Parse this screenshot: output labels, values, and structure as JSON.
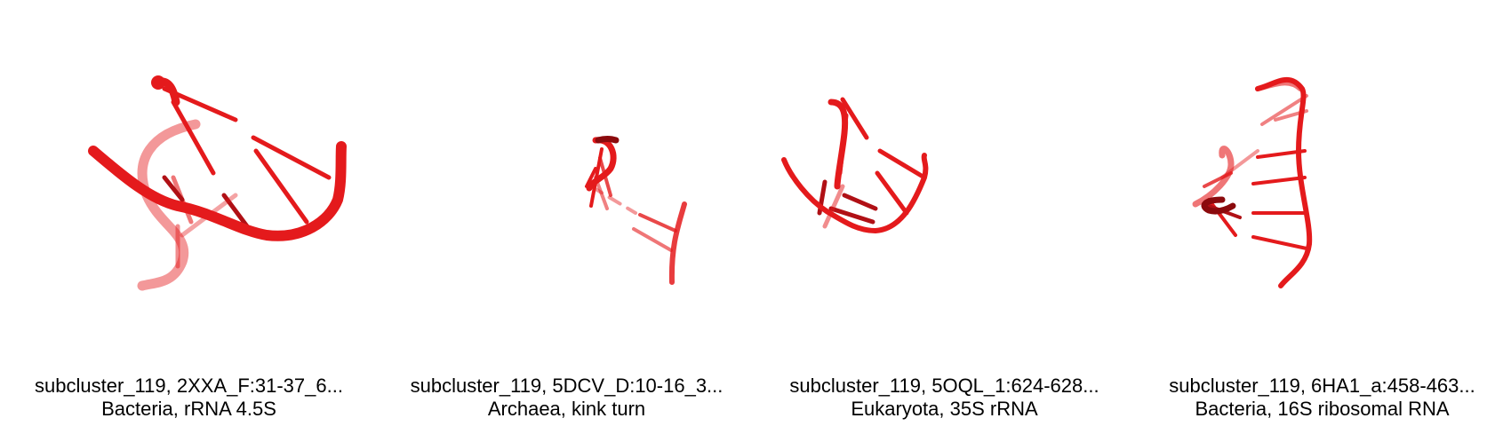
{
  "structure_color": "#e41a1c",
  "panels": [
    {
      "title": "subcluster_119, 2XXA_F:31-37_6...",
      "subtitle": "Bacteria, rRNA 4.5S",
      "image": "rna-structure-icon"
    },
    {
      "title": "subcluster_119, 5DCV_D:10-16_3...",
      "subtitle": "Archaea, kink turn",
      "image": "rna-structure-icon"
    },
    {
      "title": "subcluster_119, 5OQL_1:624-628...",
      "subtitle": "Eukaryota, 35S rRNA",
      "image": "rna-structure-icon"
    },
    {
      "title": "subcluster_119, 6HA1_a:458-463...",
      "subtitle": "Bacteria, 16S ribosomal RNA",
      "image": "rna-structure-icon"
    }
  ]
}
